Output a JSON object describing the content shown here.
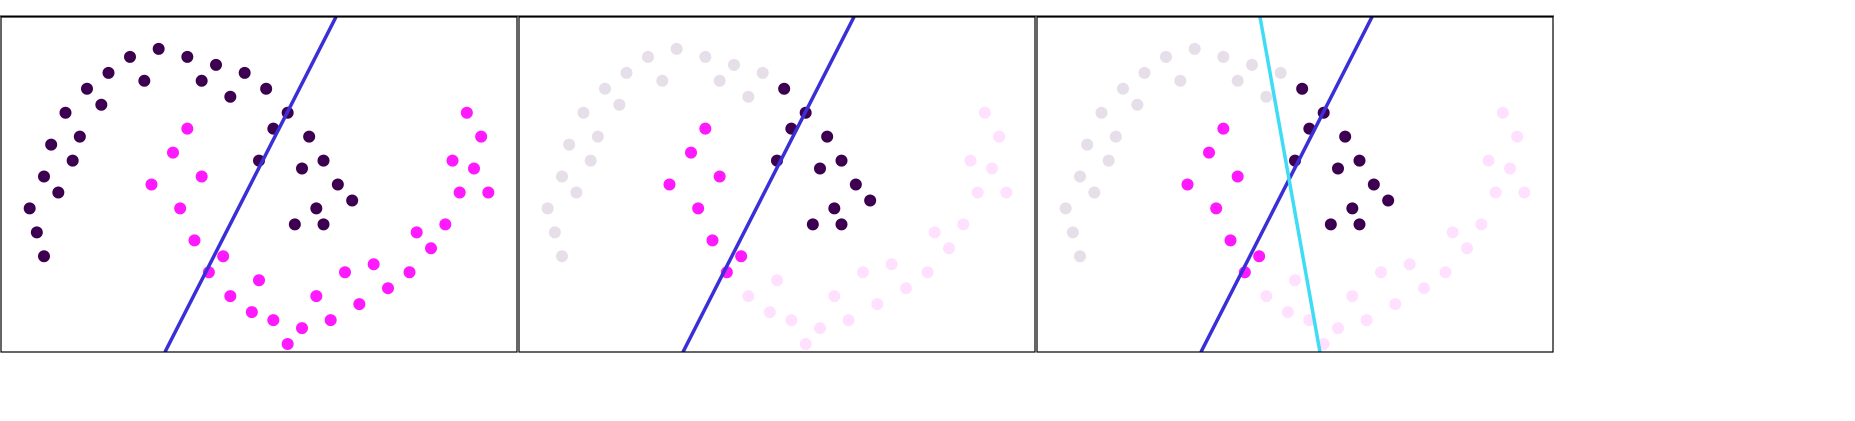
{
  "chart_data": [
    {
      "type": "scatter",
      "xlim": [
        -1.3,
        2.3
      ],
      "ylim": [
        -0.8,
        1.3
      ],
      "series": [
        {
          "color": "#3d0050",
          "opacity": 1,
          "x": [
            -1.1,
            -1.0,
            -0.95,
            -0.85,
            -0.7,
            -0.55,
            -0.4,
            -0.2,
            0,
            0.2,
            0.4,
            -1.05,
            -0.9,
            -0.75,
            -0.6,
            -0.3,
            0.1,
            0.3,
            -0.8,
            -1.0,
            0.55,
            0.7,
            0.85,
            0.95,
            1.05,
            1.15,
            0.6,
            0.8,
            0.9,
            0.75,
            0.5,
            0.95
          ],
          "y": [
            0.1,
            0.3,
            0.5,
            0.7,
            0.85,
            0.95,
            1.05,
            1.1,
            1.05,
            1.0,
            0.95,
            -0.05,
            0.2,
            0.55,
            0.75,
            0.9,
            0.9,
            0.8,
            0.4,
            -0.2,
            0.85,
            0.7,
            0.55,
            0.4,
            0.25,
            0.15,
            0.6,
            0.35,
            0.1,
            0.0,
            0.4,
            0.0
          ]
        },
        {
          "color": "#ff19ff",
          "opacity": 1,
          "x": [
            -0.25,
            -0.1,
            -0.05,
            0.05,
            0.15,
            0.0,
            0.1,
            0.25,
            0.3,
            0.45,
            0.6,
            0.8,
            1.0,
            1.2,
            1.4,
            1.55,
            1.7,
            1.8,
            1.9,
            2.0,
            2.05,
            1.95,
            0.5,
            0.9,
            1.3,
            1.6,
            1.85,
            0.7,
            1.1,
            2.1
          ],
          "y": [
            0.25,
            0.45,
            0.1,
            -0.1,
            -0.3,
            0.6,
            0.3,
            -0.2,
            -0.45,
            -0.55,
            -0.6,
            -0.65,
            -0.6,
            -0.5,
            -0.4,
            -0.3,
            -0.15,
            0.0,
            0.2,
            0.35,
            0.55,
            0.7,
            -0.35,
            -0.45,
            -0.25,
            -0.05,
            0.4,
            -0.75,
            -0.3,
            0.2
          ]
        }
      ],
      "lines": [
        {
          "color": "#3a2fd6",
          "x": [
            -0.156,
            1.037
          ],
          "y": [
            -0.8,
            1.3
          ]
        }
      ]
    },
    {
      "type": "scatter",
      "xlim": [
        -1.3,
        2.3
      ],
      "ylim": [
        -0.8,
        1.3
      ],
      "series": [
        {
          "color": "#3d0050",
          "opacity": 0.13,
          "x": [
            -1.1,
            -1.0,
            -0.95,
            -0.85,
            -0.7,
            -0.55,
            -0.4,
            -0.2,
            0,
            0.2,
            0.4,
            -1.05,
            -0.9,
            -0.75,
            -0.6,
            -0.3,
            0.1,
            0.3,
            -0.8,
            -1.0
          ],
          "y": [
            0.1,
            0.3,
            0.5,
            0.7,
            0.85,
            0.95,
            1.05,
            1.1,
            1.05,
            1.0,
            0.95,
            -0.05,
            0.2,
            0.55,
            0.75,
            0.9,
            0.9,
            0.8,
            0.4,
            -0.2
          ]
        },
        {
          "color": "#ff19ff",
          "opacity": 0.13,
          "x": [
            0.3,
            0.45,
            0.6,
            0.8,
            1.0,
            1.2,
            1.4,
            1.55,
            1.7,
            1.8,
            1.9,
            2.0,
            2.05,
            1.95,
            0.5,
            0.9,
            1.3,
            1.6,
            1.85,
            0.7,
            1.1,
            2.1
          ],
          "y": [
            -0.45,
            -0.55,
            -0.6,
            -0.65,
            -0.6,
            -0.5,
            -0.4,
            -0.3,
            -0.15,
            0.0,
            0.2,
            0.35,
            0.55,
            0.7,
            -0.35,
            -0.45,
            -0.25,
            -0.05,
            0.4,
            -0.75,
            -0.3,
            0.2
          ]
        },
        {
          "color": "#3d0050",
          "opacity": 1,
          "x": [
            0.55,
            0.7,
            0.85,
            0.95,
            1.05,
            1.15,
            0.6,
            0.8,
            0.9,
            0.75,
            0.5,
            0.95
          ],
          "y": [
            0.85,
            0.7,
            0.55,
            0.4,
            0.25,
            0.15,
            0.6,
            0.35,
            0.1,
            0.0,
            0.4,
            0.0
          ]
        },
        {
          "color": "#ff19ff",
          "opacity": 1,
          "x": [
            -0.25,
            -0.1,
            -0.05,
            0.05,
            0.15,
            0.0,
            0.1,
            0.25
          ],
          "y": [
            0.25,
            0.45,
            0.1,
            -0.1,
            -0.3,
            0.6,
            0.3,
            -0.2
          ]
        }
      ],
      "lines": [
        {
          "color": "#3a2fd6",
          "x": [
            -0.156,
            1.037
          ],
          "y": [
            -0.8,
            1.3
          ]
        }
      ]
    },
    {
      "type": "scatter",
      "xlim": [
        -1.3,
        2.3
      ],
      "ylim": [
        -0.8,
        1.3
      ],
      "series": [
        {
          "color": "#3d0050",
          "opacity": 0.13,
          "x": [
            -1.1,
            -1.0,
            -0.95,
            -0.85,
            -0.7,
            -0.55,
            -0.4,
            -0.2,
            0,
            0.2,
            0.4,
            -1.05,
            -0.9,
            -0.75,
            -0.6,
            -0.3,
            0.1,
            0.3,
            -0.8,
            -1.0
          ],
          "y": [
            0.1,
            0.3,
            0.5,
            0.7,
            0.85,
            0.95,
            1.05,
            1.1,
            1.05,
            1.0,
            0.95,
            -0.05,
            0.2,
            0.55,
            0.75,
            0.9,
            0.9,
            0.8,
            0.4,
            -0.2
          ]
        },
        {
          "color": "#ff19ff",
          "opacity": 0.13,
          "x": [
            0.3,
            0.45,
            0.6,
            0.8,
            1.0,
            1.2,
            1.4,
            1.55,
            1.7,
            1.8,
            1.9,
            2.0,
            2.05,
            1.95,
            0.5,
            0.9,
            1.3,
            1.6,
            1.85,
            0.7,
            1.1,
            2.1
          ],
          "y": [
            -0.45,
            -0.55,
            -0.6,
            -0.65,
            -0.6,
            -0.5,
            -0.4,
            -0.3,
            -0.15,
            0.0,
            0.2,
            0.35,
            0.55,
            0.7,
            -0.35,
            -0.45,
            -0.25,
            -0.05,
            0.4,
            -0.75,
            -0.3,
            0.2
          ]
        },
        {
          "color": "#3d0050",
          "opacity": 1,
          "x": [
            0.55,
            0.7,
            0.85,
            0.95,
            1.05,
            1.15,
            0.6,
            0.8,
            0.9,
            0.75,
            0.5,
            0.95
          ],
          "y": [
            0.85,
            0.7,
            0.55,
            0.4,
            0.25,
            0.15,
            0.6,
            0.35,
            0.1,
            0.0,
            0.4,
            0.0
          ]
        },
        {
          "color": "#ff19ff",
          "opacity": 1,
          "x": [
            -0.25,
            -0.1,
            -0.05,
            0.05,
            0.15,
            0.0,
            0.1,
            0.25
          ],
          "y": [
            0.25,
            0.45,
            0.1,
            -0.1,
            -0.3,
            0.6,
            0.3,
            -0.2
          ]
        }
      ],
      "lines": [
        {
          "color": "#3a2fd6",
          "x": [
            -0.156,
            1.037
          ],
          "y": [
            -0.8,
            1.3
          ]
        },
        {
          "color": "#3fdcf5",
          "x": [
            0.256,
            0.674
          ],
          "y": [
            1.3,
            -0.8
          ]
        }
      ]
    }
  ]
}
